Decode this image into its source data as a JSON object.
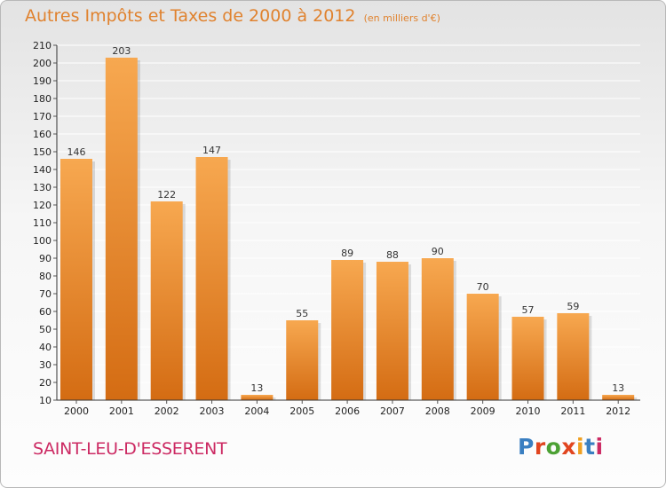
{
  "header": {
    "title": "Autres Impôts et Taxes de 2000 à 2012",
    "unit": "(en milliers d'€)"
  },
  "commune_name": "SAINT-LEU-D'ESSERENT",
  "logo": {
    "text": "Proxiti",
    "colors": [
      "#3a7fc1",
      "#e1451f",
      "#4ca134",
      "#e1451f",
      "#f0a020",
      "#3a7fc1",
      "#cc2a63"
    ]
  },
  "colors": {
    "title": "#e0822e",
    "commune": "#cc2a63",
    "bar_light": "#f7a850",
    "bar_dark": "#d46c13",
    "grid": "#ffffff",
    "axis": "#333333"
  },
  "chart_data": {
    "type": "bar",
    "title": "Autres Impôts et Taxes de 2000 à 2012",
    "subtitle": "(en milliers d'€)",
    "xlabel": "",
    "ylabel": "",
    "categories": [
      "2000",
      "2001",
      "2002",
      "2003",
      "2004",
      "2005",
      "2006",
      "2007",
      "2008",
      "2009",
      "2010",
      "2011",
      "2012"
    ],
    "values": [
      146,
      203,
      122,
      147,
      13,
      55,
      89,
      88,
      90,
      70,
      57,
      59,
      13
    ],
    "data_labels": [
      "146",
      "203",
      "122",
      "147",
      "13",
      "55",
      "89",
      "88",
      "90",
      "70",
      "57",
      "59",
      "13"
    ],
    "ylim": [
      10,
      210
    ],
    "yticks": [
      10,
      20,
      30,
      40,
      50,
      60,
      70,
      80,
      90,
      100,
      110,
      120,
      130,
      140,
      150,
      160,
      170,
      180,
      190,
      200,
      210
    ],
    "grid": true,
    "legend": "none"
  }
}
